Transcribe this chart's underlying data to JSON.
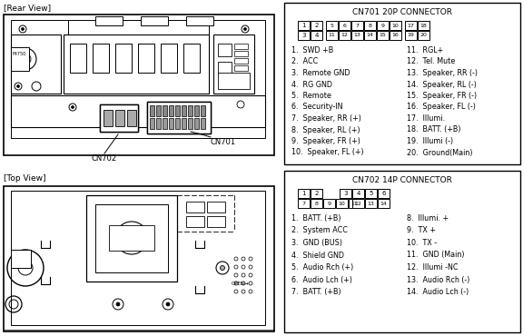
{
  "bg_color": "#ffffff",
  "rear_view_label": "[Rear View]",
  "top_view_label": "[Top View]",
  "cn701_label": "CN701",
  "cn702_label": "CN702",
  "cn701_title": "CN701 20P CONNECTOR",
  "cn701_left": [
    "1.  SWD +B",
    "2.  ACC",
    "3.  Remote GND",
    "4.  RG GND",
    "5.  Remote",
    "6.  Security-IN",
    "7.  Speaker, RR (+)",
    "8.  Speaker, RL (+)",
    "9.  Speaker, FR (+)",
    "10.  Speaker, FL (+)"
  ],
  "cn701_right": [
    "11.  RGL+",
    "12.  Tel. Mute",
    "13.  Speaker, RR (-)",
    "14.  Speaker, RL (-)",
    "15.  Speaker, FR (-)",
    "16.  Speaker, FL (-)",
    "17.  Illumi.",
    "18.  BATT. (+B)",
    "19.  Illumi (-)",
    "20.  Ground(Main)"
  ],
  "cn702_title": "CN702 14P CONNECTOR",
  "cn702_left": [
    "1.  BATT. (+B)",
    "2.  System ACC",
    "3.  GND (BUS)",
    "4.  Shield GND",
    "5.  Audio Rch (+)",
    "6.  Audio Lch (+)",
    "7.  BATT. (+B)"
  ],
  "cn702_right": [
    "8.  Illumi. +",
    "9.  TX +",
    "10.  TX -",
    "11.  GND (Main)",
    "12.  Illumi -NC",
    "13.  Audio Rch (-)",
    "14.  Audio Lch (-)"
  ]
}
